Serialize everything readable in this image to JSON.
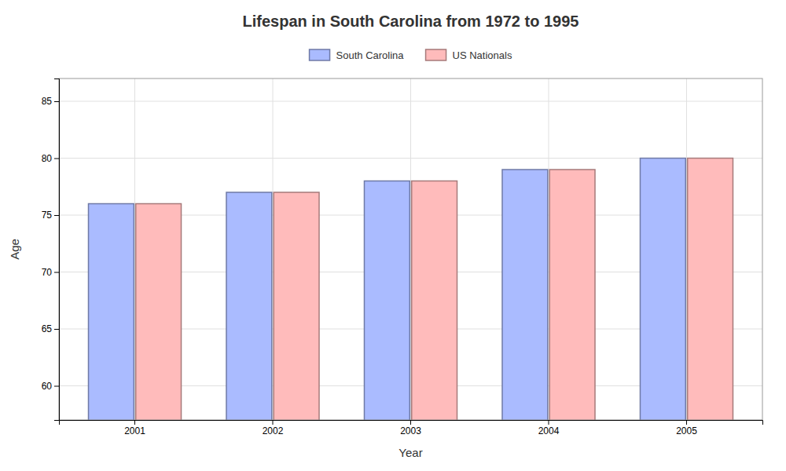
{
  "chart_data": {
    "type": "bar",
    "title": "Lifespan in South Carolina from 1972 to 1995",
    "xlabel": "Year",
    "ylabel": "Age",
    "categories": [
      "2001",
      "2002",
      "2003",
      "2004",
      "2005"
    ],
    "series": [
      {
        "name": "South Carolina",
        "color": "#aabbff",
        "values": [
          76,
          77,
          78,
          79,
          80
        ]
      },
      {
        "name": "US Nationals",
        "color": "#ffbbbb",
        "values": [
          76,
          77,
          78,
          79,
          80
        ]
      }
    ],
    "ylim": [
      57,
      87
    ],
    "yticks": [
      60,
      65,
      70,
      75,
      80,
      85
    ],
    "grid": true,
    "legend": "top"
  }
}
